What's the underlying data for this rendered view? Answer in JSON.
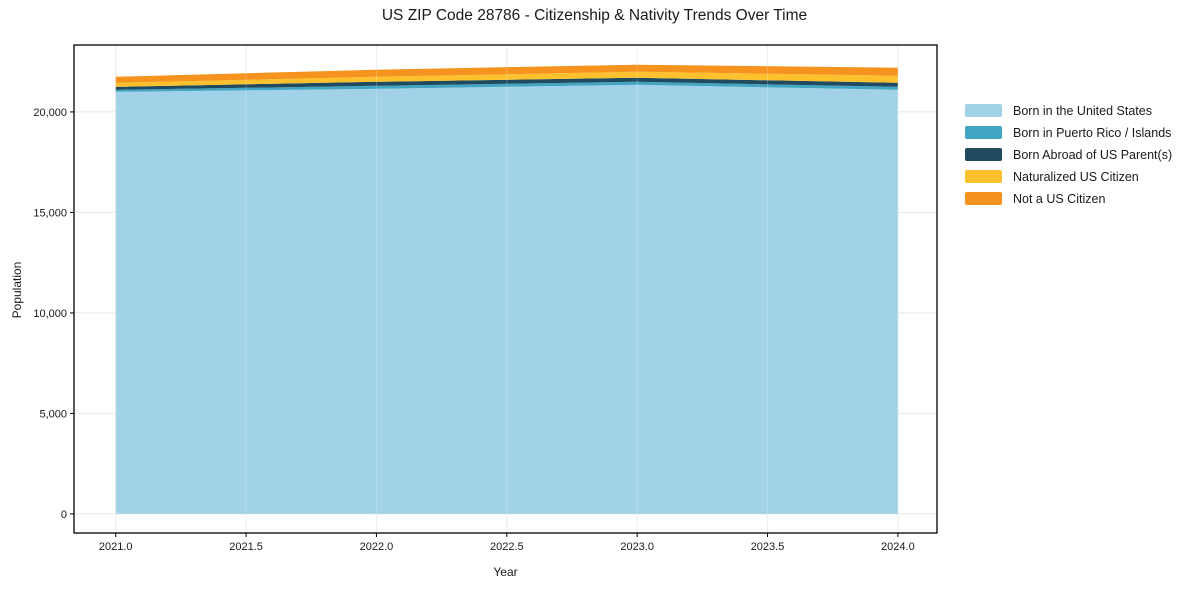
{
  "page": {
    "background": "#ffffff"
  },
  "chart_data": {
    "type": "area",
    "stacked": true,
    "title": "US ZIP Code 28786 - Citizenship & Nativity Trends Over Time",
    "xlabel": "Year",
    "ylabel": "Population",
    "x": [
      2021,
      2022,
      2023,
      2024
    ],
    "series": [
      {
        "name": "Born in the United States",
        "color": "#A2D2E8",
        "values": [
          21000,
          21150,
          21350,
          21100
        ]
      },
      {
        "name": "Born in Puerto Rico / Islands",
        "color": "#42A5C2",
        "values": [
          100,
          150,
          150,
          150
        ]
      },
      {
        "name": "Born Abroad of US Parent(s)",
        "color": "#1F4A5F",
        "values": [
          150,
          200,
          200,
          200
        ]
      },
      {
        "name": "Naturalized US Citizen",
        "color": "#FCC12D",
        "values": [
          200,
          250,
          300,
          350
        ]
      },
      {
        "name": "Not a US Citizen",
        "color": "#F6921E",
        "values": [
          300,
          350,
          350,
          400
        ]
      }
    ],
    "x_tick_values": [
      2021,
      2021.5,
      2022,
      2022.5,
      2023,
      2023.5,
      2024
    ],
    "x_ticks": [
      "2021.0",
      "2021.5",
      "2022.0",
      "2022.5",
      "2023.0",
      "2023.5",
      "2024.0"
    ],
    "y_tick_values": [
      0,
      5000,
      10000,
      15000,
      20000
    ],
    "y_ticks": [
      "0",
      "5,000",
      "10,000",
      "15,000",
      "20,000"
    ],
    "xlim": [
      2020.84,
      2024.15
    ],
    "ylim": [
      -950,
      23330
    ],
    "grid": true,
    "grid_color": "#e7e7e7",
    "axis_color": "#000000",
    "text_color": "#1a1a1a",
    "legend_position": "right"
  }
}
